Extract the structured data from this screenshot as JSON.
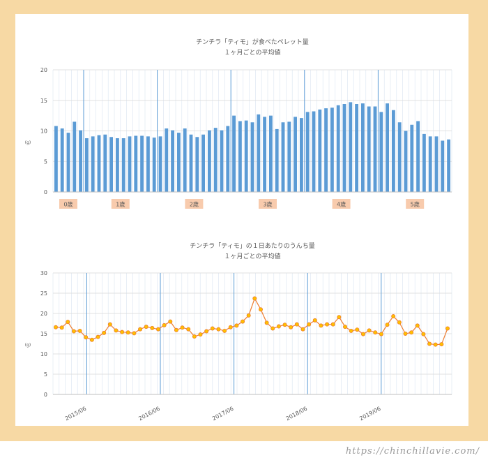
{
  "watermark": "https://chinchillavie.com/",
  "chart_data": [
    {
      "type": "bar",
      "title": "チンチラ「ティモ」が食べたペレット量",
      "subtitle": "１ヶ月ごとの平均値",
      "ylabel": "(g)",
      "ylim": [
        0,
        20
      ],
      "yticks": [
        0,
        5,
        10,
        15,
        20
      ],
      "age_labels": [
        "0歳",
        "1歳",
        "2歳",
        "3歳",
        "4歳",
        "5歳"
      ],
      "colors": {
        "bar": "#5b9bd5",
        "age_label_bg": "#f8cbad",
        "grid": "#d9e4f0",
        "divider": "#5b9bd5"
      },
      "values": [
        10.8,
        10.4,
        9.7,
        11.5,
        10.1,
        8.8,
        9.1,
        9.3,
        9.4,
        9.0,
        8.8,
        8.8,
        9.1,
        9.2,
        9.2,
        9.1,
        8.9,
        9.1,
        10.4,
        10.1,
        9.7,
        10.4,
        9.4,
        9.0,
        9.4,
        10.1,
        10.5,
        10.1,
        10.8,
        12.5,
        11.6,
        11.7,
        11.4,
        12.7,
        12.3,
        12.5,
        10.3,
        11.4,
        11.5,
        12.3,
        12.1,
        13.1,
        13.2,
        13.5,
        13.7,
        13.8,
        14.2,
        14.4,
        14.7,
        14.4,
        14.5,
        14.0,
        14.0,
        13.1,
        14.5,
        13.4,
        11.4,
        10.0,
        11.0,
        11.6,
        9.5,
        9.1,
        9.1,
        8.4,
        8.6
      ]
    },
    {
      "type": "line",
      "title": "チンチラ「ティモ」の１日あたりのうんち量",
      "subtitle": "１ヶ月ごとの平均値",
      "ylabel": "(g)",
      "ylim": [
        0,
        30
      ],
      "yticks": [
        0,
        5,
        10,
        15,
        20,
        25,
        30
      ],
      "xtick_labels": [
        "2015/06",
        "2016/06",
        "2017/06",
        "2018/06",
        "2019/06"
      ],
      "colors": {
        "line": "#ed7d31",
        "marker": "#ffc000",
        "grid": "#d9e4f0",
        "divider": "#5b9bd5"
      },
      "values": [
        16.6,
        16.5,
        17.9,
        15.6,
        15.7,
        14.1,
        13.5,
        14.2,
        15.2,
        17.3,
        15.8,
        15.4,
        15.3,
        15.1,
        16.1,
        16.7,
        16.4,
        16.1,
        17.1,
        18.0,
        15.9,
        16.5,
        16.1,
        14.3,
        14.8,
        15.6,
        16.3,
        16.1,
        15.7,
        16.6,
        17.0,
        18.0,
        19.5,
        23.7,
        21.0,
        17.7,
        16.3,
        16.8,
        17.2,
        16.6,
        17.3,
        16.1,
        17.3,
        18.3,
        17.0,
        17.3,
        17.3,
        19.1,
        16.7,
        15.7,
        16.0,
        14.9,
        15.8,
        15.3,
        14.9,
        17.2,
        19.3,
        17.8,
        15.0,
        15.3,
        17.0,
        14.9,
        12.5,
        12.3,
        12.4,
        16.3
      ]
    }
  ]
}
